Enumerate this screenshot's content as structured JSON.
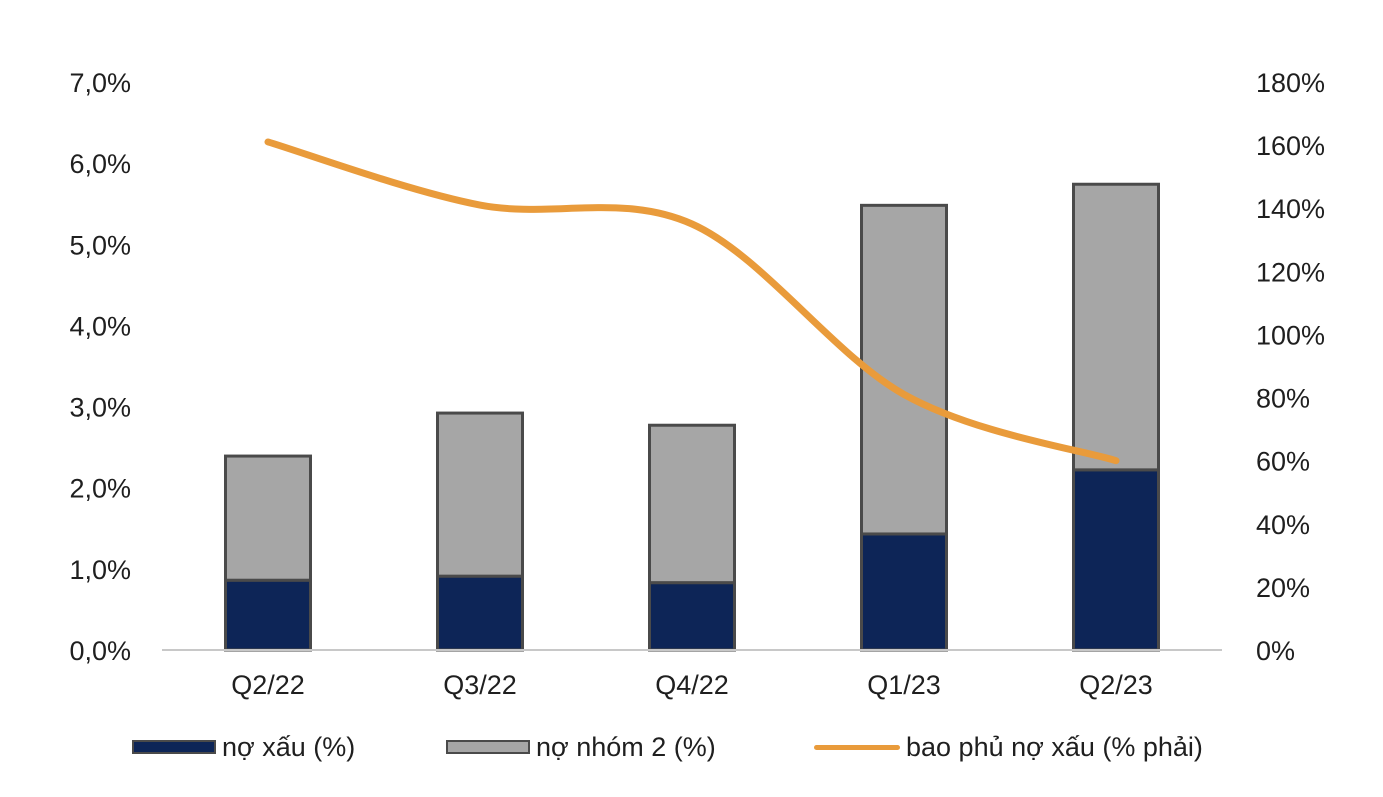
{
  "chart_data": {
    "type": "bar",
    "stacked": true,
    "categories": [
      "Q2/22",
      "Q3/22",
      "Q4/22",
      "Q1/23",
      "Q2/23"
    ],
    "series": [
      {
        "name": "nợ xấu (%)",
        "type": "bar",
        "axis": "left",
        "color": "#0d2557",
        "values": [
          0.86,
          0.91,
          0.83,
          1.43,
          2.22
        ]
      },
      {
        "name": "nợ nhóm 2 (%)",
        "type": "bar",
        "axis": "left",
        "color": "#a6a6a6",
        "values": [
          1.53,
          2.01,
          1.94,
          4.05,
          3.52
        ]
      },
      {
        "name": "bao phủ nợ xấu (% phải)",
        "type": "line",
        "axis": "right",
        "color": "#e99b3b",
        "values": [
          161,
          141,
          135,
          81,
          60
        ]
      }
    ],
    "left_axis": {
      "ylim": [
        0,
        7
      ],
      "ticks": [
        "0,0%",
        "1,0%",
        "2,0%",
        "3,0%",
        "4,0%",
        "5,0%",
        "6,0%",
        "7,0%"
      ]
    },
    "right_axis": {
      "ylim": [
        0,
        180
      ],
      "ticks": [
        "0%",
        "20%",
        "40%",
        "60%",
        "80%",
        "100%",
        "120%",
        "140%",
        "160%",
        "180%"
      ]
    },
    "legend_position": "bottom",
    "grid": false,
    "title": "",
    "xlabel": "",
    "ylabel": ""
  }
}
